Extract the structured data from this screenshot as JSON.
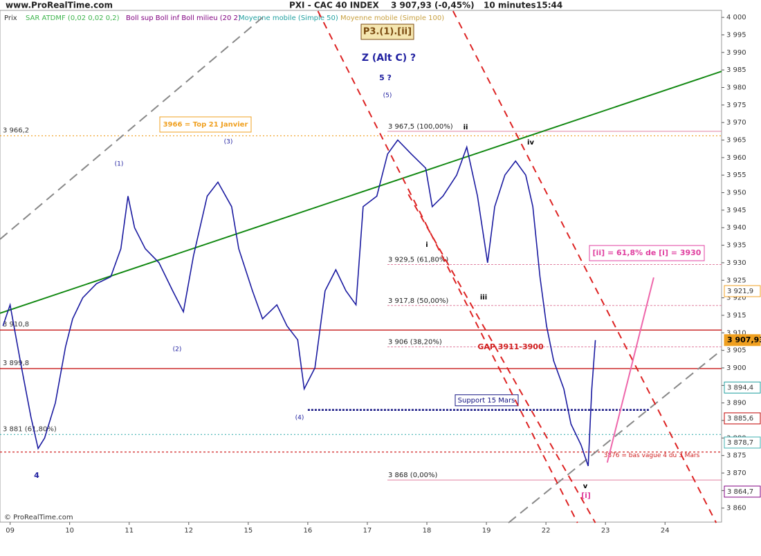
{
  "chart_data": {
    "type": "line",
    "site": "www.ProRealTime.com",
    "title": "PXI - CAC 40 INDEX",
    "last_quote": "3 907,93 (-0,45%)",
    "timeframe": "10 minutes",
    "time": "15:44",
    "price_label": "Prix",
    "copyright": "© ProRealTime.com",
    "indicators": [
      {
        "name": "SAR ATDMF (0,02 0,02 0,2)",
        "color": "#3cb44b"
      },
      {
        "name": "Boll sup Boll inf Boll milieu (20 2)",
        "color": "#800080"
      },
      {
        "name": "Moyenne mobile (Simple 50)",
        "color": "#20a0a0"
      },
      {
        "name": "Moyenne mobile (Simple 100)",
        "color": "#c8a040"
      }
    ],
    "xlim": [
      -0.17,
      11.95
    ],
    "ylim": [
      3856,
      4002
    ],
    "xticks": [
      {
        "value": 0,
        "label": "09"
      },
      {
        "value": 1,
        "label": "10"
      },
      {
        "value": 2,
        "label": "11"
      },
      {
        "value": 3,
        "label": "12"
      },
      {
        "value": 4,
        "label": "15"
      },
      {
        "value": 5,
        "label": "16"
      },
      {
        "value": 6,
        "label": "17"
      },
      {
        "value": 7,
        "label": "18"
      },
      {
        "value": 8,
        "label": "19"
      },
      {
        "value": 9,
        "label": "22"
      },
      {
        "value": 10,
        "label": "23"
      },
      {
        "value": 11,
        "label": "24"
      }
    ],
    "yticks": [
      {
        "value": 3860,
        "label": "3 860"
      },
      {
        "value": 3865,
        "label": "3 865"
      },
      {
        "value": 3870,
        "label": "3 870"
      },
      {
        "value": 3875,
        "label": "3 875"
      },
      {
        "value": 3880,
        "label": "3 880"
      },
      {
        "value": 3885,
        "label": "3 885"
      },
      {
        "value": 3890,
        "label": "3 890"
      },
      {
        "value": 3895,
        "label": "3 895"
      },
      {
        "value": 3900,
        "label": "3 900"
      },
      {
        "value": 3905,
        "label": "3 905"
      },
      {
        "value": 3910,
        "label": "3 910"
      },
      {
        "value": 3915,
        "label": "3 915"
      },
      {
        "value": 3920,
        "label": "3 920"
      },
      {
        "value": 3925,
        "label": "3 925"
      },
      {
        "value": 3930,
        "label": "3 930"
      },
      {
        "value": 3935,
        "label": "3 935"
      },
      {
        "value": 3940,
        "label": "3 940"
      },
      {
        "value": 3945,
        "label": "3 945"
      },
      {
        "value": 3950,
        "label": "3 950"
      },
      {
        "value": 3955,
        "label": "3 955"
      },
      {
        "value": 3960,
        "label": "3 960"
      },
      {
        "value": 3965,
        "label": "3 965"
      },
      {
        "value": 3970,
        "label": "3 970"
      },
      {
        "value": 3975,
        "label": "3 975"
      },
      {
        "value": 3980,
        "label": "3 980"
      },
      {
        "value": 3985,
        "label": "3 985"
      },
      {
        "value": 3990,
        "label": "3 990"
      },
      {
        "value": 3995,
        "label": "3 995"
      },
      {
        "value": 4000,
        "label": "4 000"
      }
    ],
    "series": [
      {
        "name": "CAC 40",
        "color": "#1a1aa0",
        "x": [
          -0.12,
          0,
          0.17,
          0.35,
          0.47,
          0.58,
          0.76,
          0.93,
          1.05,
          1.22,
          1.45,
          1.69,
          1.86,
          1.98,
          2.09,
          2.27,
          2.5,
          2.73,
          2.91,
          3.08,
          3.31,
          3.49,
          3.72,
          3.84,
          4.07,
          4.24,
          4.48,
          4.65,
          4.83,
          4.94,
          5.12,
          5.29,
          5.47,
          5.64,
          5.81,
          5.93,
          6.16,
          6.34,
          6.51,
          6.74,
          6.98,
          7.09,
          7.27,
          7.5,
          7.67,
          7.85,
          8.02,
          8.14,
          8.31,
          8.49,
          8.66,
          8.78,
          8.9,
          9.01,
          9.13,
          9.3,
          9.42,
          9.59,
          9.71,
          9.77,
          9.83
        ],
        "values": [
          3912,
          3918,
          3902,
          3886,
          3877,
          3880,
          3890,
          3906,
          3914,
          3920,
          3924,
          3926,
          3934,
          3949,
          3940,
          3934,
          3930,
          3922,
          3916,
          3932,
          3949,
          3953,
          3946,
          3934,
          3922,
          3914,
          3918,
          3912,
          3908,
          3894,
          3900,
          3922,
          3928,
          3922,
          3918,
          3946,
          3949,
          3961,
          3965,
          3961,
          3957,
          3946,
          3949,
          3955,
          3963,
          3949,
          3930,
          3946,
          3955,
          3959,
          3955,
          3946,
          3926,
          3912,
          3902,
          3894,
          3884,
          3878,
          3872,
          3894,
          3907.93
        ]
      }
    ],
    "levels": [
      {
        "value": 3966.2,
        "label": "3 966,2",
        "color": "#f0a020",
        "dash": "2,3",
        "from": -0.17
      },
      {
        "value": 3910.8,
        "label": "3 910,8",
        "color": "#c00000",
        "dash": "none",
        "from": -0.17
      },
      {
        "value": 3899.8,
        "label": "3 899,8",
        "color": "#c00000",
        "dash": "none",
        "from": -0.17
      },
      {
        "value": 3881,
        "label": "3 881 (61,80%)",
        "color": "#40b0b0",
        "dash": "2,3",
        "from": -0.17
      },
      {
        "value": 3876,
        "label": "3876 = bas vague 4 du 3 Mars",
        "color": "#d02020",
        "dash": "3,3",
        "from": -0.17
      },
      {
        "value": 3888,
        "label": "Support 15 Mars",
        "color": "#101080",
        "dash": "3,2",
        "from": 5,
        "to": 10.75
      }
    ],
    "fibonacci": [
      {
        "value": 3967.5,
        "label": "3 967,5 (100,00%)"
      },
      {
        "value": 3929.5,
        "label": "3 929,5 (61,80%)"
      },
      {
        "value": 3917.8,
        "label": "3 917,8 (50,00%)"
      },
      {
        "value": 3906,
        "label": "3 906 (38,20%)"
      },
      {
        "value": 3868,
        "label": "3 868 (0,00%)"
      }
    ],
    "price_labels": [
      {
        "value": 3921.9,
        "label": "3 921,9",
        "color": "#f0a020"
      },
      {
        "value": 3907.93,
        "label": "3 907,93",
        "color": "#f0a020"
      },
      {
        "value": 3894.4,
        "label": "3 894,4",
        "color": "#20a0a0"
      },
      {
        "value": 3885.6,
        "label": "3 885,6",
        "color": "#c00000"
      },
      {
        "value": 3878.7,
        "label": "3 878,7",
        "color": "#40b0b0"
      },
      {
        "value": 3864.7,
        "label": "3 864,7",
        "color": "#800080"
      }
    ],
    "trendlines": [
      {
        "color": "#118811",
        "dash": "none",
        "x": [
          -0.17,
          11.95
        ],
        "values": [
          3915.6,
          3984.6
        ]
      },
      {
        "color": "#888888",
        "dash": "14,8",
        "x": [
          -0.17,
          4.24
        ],
        "values": [
          3936.7,
          4000
        ]
      },
      {
        "color": "#888888",
        "dash": "14,8",
        "x": [
          8.37,
          11.95
        ],
        "values": [
          3855.8,
          3905.1
        ]
      },
      {
        "color": "#dd2222",
        "dash": "10,8",
        "x": [
          5.17,
          9.53
        ],
        "values": [
          4001.8,
          3855.8
        ]
      },
      {
        "color": "#dd2222",
        "dash": "10,8",
        "x": [
          7.44,
          11.86
        ],
        "values": [
          4001.8,
          3855.8
        ]
      },
      {
        "color": "#dd2222",
        "dash": "10,8",
        "x": [
          6.69,
          9.83
        ],
        "values": [
          3949.5,
          3855.8
        ]
      },
      {
        "color": "#ee66aa",
        "dash": "none",
        "x": [
          10.03,
          10.81
        ],
        "values": [
          3873,
          3925.8
        ]
      }
    ],
    "annotations": [
      "P3.(1).[ii]",
      "Z (Alt C) ?",
      "5 ?",
      "(5)",
      "(1)",
      "(2)",
      "(3)",
      "(4)",
      "4",
      "i",
      "ii",
      "iii",
      "iv",
      "v",
      "[i]",
      "GAP 3911-3900",
      "[ii] = 61,8% de [i] = 3930",
      "3966 = Top 21 Janvier"
    ]
  }
}
